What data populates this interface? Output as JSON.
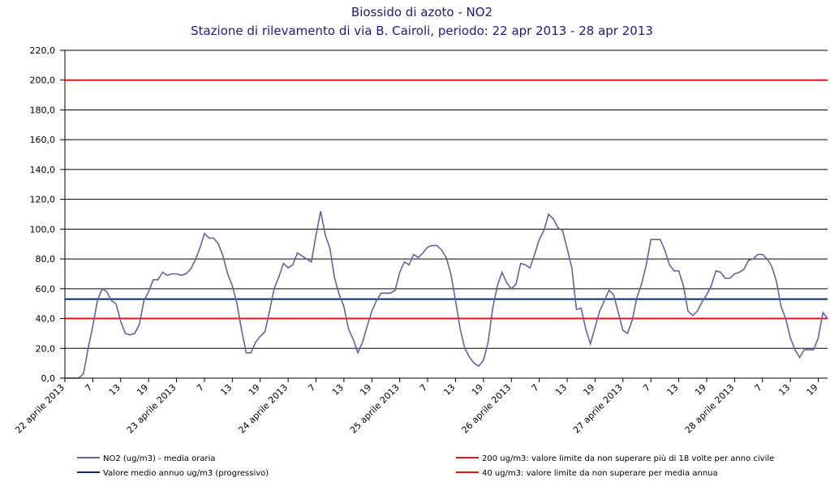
{
  "chart_data": {
    "type": "line",
    "title": "Biossido di azoto - NO2",
    "subtitle": "Stazione di rilevamento di via B. Cairoli, periodo: 22 apr 2013 - 28 apr 2013",
    "categories": [
      "22 aprile 2013",
      null,
      null,
      null,
      null,
      null,
      "7",
      null,
      null,
      null,
      null,
      null,
      "13",
      null,
      null,
      null,
      null,
      null,
      "19",
      null,
      null,
      null,
      null,
      null,
      "23 aprile 2013",
      null,
      null,
      null,
      null,
      null,
      "7",
      null,
      null,
      null,
      null,
      null,
      "13",
      null,
      null,
      null,
      null,
      null,
      "19",
      null,
      null,
      null,
      null,
      null,
      "24 aprile 2013",
      null,
      null,
      null,
      null,
      null,
      "7",
      null,
      null,
      null,
      null,
      null,
      "13",
      null,
      null,
      null,
      null,
      null,
      "19",
      null,
      null,
      null,
      null,
      null,
      "25 aprile 2013",
      null,
      null,
      null,
      null,
      null,
      "7",
      null,
      null,
      null,
      null,
      null,
      "13",
      null,
      null,
      null,
      null,
      null,
      "19",
      null,
      null,
      null,
      null,
      null,
      "26 aprile 2013",
      null,
      null,
      null,
      null,
      null,
      "7",
      null,
      null,
      null,
      null,
      null,
      "13",
      null,
      null,
      null,
      null,
      null,
      "19",
      null,
      null,
      null,
      null,
      null,
      "27 aprile 2013",
      null,
      null,
      null,
      null,
      null,
      "7",
      null,
      null,
      null,
      null,
      null,
      "13",
      null,
      null,
      null,
      null,
      null,
      "19",
      null,
      null,
      null,
      null,
      null,
      "28 aprile 2013",
      null,
      null,
      null,
      null,
      null,
      "7",
      null,
      null,
      null,
      null,
      null,
      "13",
      null,
      null,
      null,
      null,
      null,
      "19",
      null,
      null
    ],
    "series": [
      {
        "name": "NO2 (ug/m3)  - media oraria",
        "color": "#6262a8",
        "values": [
          0,
          0,
          0,
          0,
          3,
          20,
          35,
          52,
          60,
          58,
          52,
          50,
          38,
          30,
          29,
          30,
          36,
          52,
          58,
          66,
          66,
          71,
          69,
          70,
          70,
          69,
          70,
          73,
          79,
          87,
          97,
          94,
          94,
          90,
          82,
          70,
          62,
          50,
          32,
          17,
          17,
          24,
          28,
          31,
          45,
          60,
          68,
          77,
          74,
          76,
          84,
          82,
          80,
          78,
          96,
          112,
          96,
          87,
          67,
          56,
          48,
          33,
          26,
          17,
          24,
          35,
          45,
          52,
          57,
          57,
          57,
          59,
          71,
          78,
          76,
          83,
          81,
          84,
          88,
          89,
          89,
          86,
          81,
          70,
          52,
          33,
          20,
          14,
          10,
          8,
          12,
          24,
          47,
          62,
          71,
          64,
          60,
          63,
          77,
          76,
          74,
          83,
          93,
          99,
          110,
          107,
          101,
          99,
          87,
          74,
          46,
          47,
          33,
          23,
          34,
          45,
          52,
          59,
          56,
          44,
          32,
          30,
          39,
          54,
          63,
          76,
          93,
          93,
          93,
          86,
          76,
          72,
          72,
          62,
          45,
          42,
          45,
          51,
          56,
          62,
          72,
          71,
          67,
          67,
          70,
          71,
          73,
          79,
          80,
          83,
          83,
          80,
          75,
          65,
          48,
          40,
          27,
          19,
          14,
          19,
          19,
          19,
          27,
          44,
          40
        ]
      }
    ],
    "reference_lines": [
      {
        "name": "Valore medio annuo ug/m3 (progressivo)",
        "color": "#0a2a6a",
        "value": 53
      },
      {
        "name": "200 ug/m3: valore limite da non superare più di 18 volte per anno civile",
        "color": "#e8141e",
        "value": 200
      },
      {
        "name": "40 ug/m3: valore limite da non superare per media annua",
        "color": "#e8141e",
        "value": 40
      }
    ],
    "ylim": [
      0,
      220
    ],
    "yticks": [
      {
        "value": 0,
        "label": "0,0"
      },
      {
        "value": 20,
        "label": "20,0"
      },
      {
        "value": 40,
        "label": "40,0"
      },
      {
        "value": 60,
        "label": "60,0"
      },
      {
        "value": 80,
        "label": "80,0"
      },
      {
        "value": 100,
        "label": "100,0"
      },
      {
        "value": 120,
        "label": "120,0"
      },
      {
        "value": 140,
        "label": "140,0"
      },
      {
        "value": 160,
        "label": "160,0"
      },
      {
        "value": 180,
        "label": "180,0"
      },
      {
        "value": 200,
        "label": "200,0"
      },
      {
        "value": 220,
        "label": "220,0"
      }
    ],
    "grid": true
  }
}
